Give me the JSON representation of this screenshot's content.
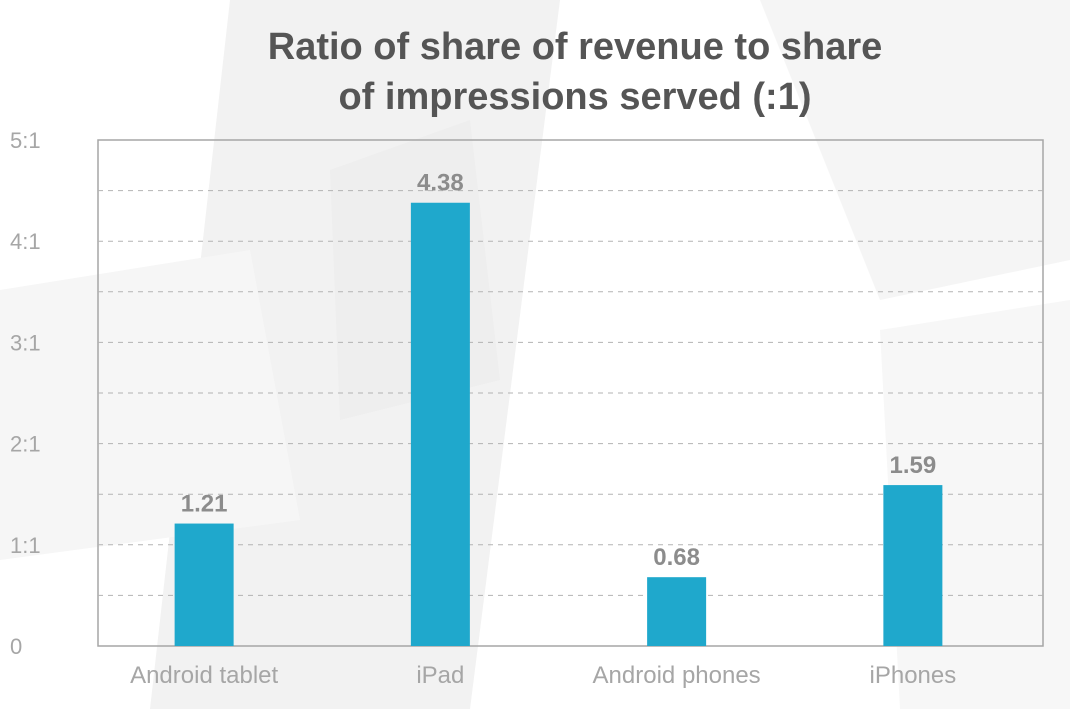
{
  "chart_data": {
    "type": "bar",
    "title_lines": [
      "Ratio of share of revenue to share",
      "of impressions served (:1)"
    ],
    "categories": [
      "Android tablet",
      "iPad",
      "Android phones",
      "iPhones"
    ],
    "values": [
      1.21,
      4.38,
      0.68,
      1.59
    ],
    "data_labels": [
      "1.21",
      "4.38",
      "0.68",
      "1.59"
    ],
    "y_ticks": [
      0,
      1,
      2,
      3,
      4,
      5
    ],
    "y_tick_labels": [
      "0",
      "1:1",
      "2:1",
      "3:1",
      "4:1",
      "5:1"
    ],
    "ylim": [
      0,
      5
    ],
    "grid": "dashed",
    "legend": "none",
    "bar_color": "#1fa8cc"
  }
}
